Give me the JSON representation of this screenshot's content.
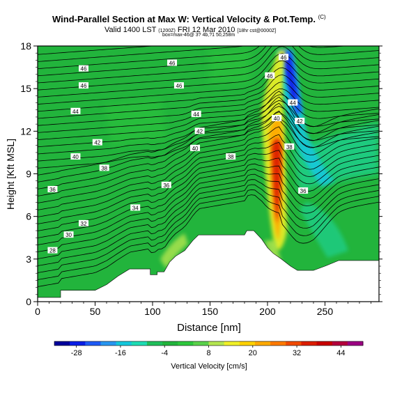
{
  "header": {
    "title_main": "Wind-Parallel Section at Max W: Vertical Velocity & Pot.Temp.",
    "title_unit": "(C)",
    "valid_prefix": "Valid 1400 LST",
    "valid_paren": "(1200Z)",
    "valid_date": "FRI 12 Mar 2010",
    "valid_suffix": "[18hr cst@0000Z]",
    "info_line": "box=max-46@ 3? 4b,?1 50,258m"
  },
  "colorbar": {
    "label": "Vertical Velocity [cm/s]",
    "tick_labels": [
      "-28",
      "-16",
      "-4",
      "8",
      "20",
      "32",
      "44"
    ],
    "colors": [
      "#00009b",
      "#0a1ee6",
      "#1e5af5",
      "#2896f0",
      "#14c8dc",
      "#1eddb4",
      "#20bf5a",
      "#22b43c",
      "#2dc83c",
      "#5ad24b",
      "#b4e650",
      "#f0f028",
      "#ffd200",
      "#ffaa00",
      "#ff7a00",
      "#f04a00",
      "#dc1e00",
      "#c80000",
      "#b4003c",
      "#9b0082"
    ]
  },
  "chart_data": {
    "type": "heatmap",
    "title": "Wind-Parallel Section at Max W: Vertical Velocity & Pot.Temp.",
    "xlabel": "Distance [nm]",
    "ylabel": "Height [Kft MSL]",
    "xlim": [
      0,
      297
    ],
    "ylim": [
      0,
      18
    ],
    "x_ticks": [
      0,
      50,
      100,
      150,
      200,
      250
    ],
    "y_ticks": [
      0,
      3,
      6,
      9,
      12,
      15,
      18
    ],
    "grid": false,
    "colorbar_label": "Vertical Velocity [cm/s]",
    "colorbar_range": [
      -34,
      50
    ],
    "vertical_velocity_features": [
      {
        "kind": "updraft_core",
        "x": 208,
        "y_range": [
          3.5,
          12.5
        ],
        "max_cm_s": 46
      },
      {
        "kind": "updraft_plume",
        "x": 196,
        "y_range": [
          12,
          17.5
        ],
        "max_cm_s": 20
      },
      {
        "kind": "downdraft_core",
        "x": 218,
        "y_range": [
          12.5,
          17.8
        ],
        "min_cm_s": -28
      },
      {
        "kind": "downdraft_band",
        "x": 222,
        "y_range": [
          7.5,
          12.5
        ],
        "min_cm_s": -10
      },
      {
        "kind": "upslope_lift",
        "x": 115,
        "y_range": [
          2.2,
          4.5
        ],
        "max_cm_s": 14
      }
    ],
    "terrain_kft": [
      {
        "x": 0,
        "y": 0.3
      },
      {
        "x": 20,
        "y": 0.3
      },
      {
        "x": 20,
        "y": 0.8
      },
      {
        "x": 50,
        "y": 0.8
      },
      {
        "x": 60,
        "y": 1.2
      },
      {
        "x": 70,
        "y": 1.8
      },
      {
        "x": 80,
        "y": 2.3
      },
      {
        "x": 98,
        "y": 2.3
      },
      {
        "x": 98,
        "y": 1.9
      },
      {
        "x": 104,
        "y": 1.9
      },
      {
        "x": 104,
        "y": 2.1
      },
      {
        "x": 110,
        "y": 2.1
      },
      {
        "x": 115,
        "y": 2.8
      },
      {
        "x": 120,
        "y": 3.2
      },
      {
        "x": 128,
        "y": 3.6
      },
      {
        "x": 135,
        "y": 4.3
      },
      {
        "x": 140,
        "y": 4.7
      },
      {
        "x": 180,
        "y": 4.7
      },
      {
        "x": 182,
        "y": 5.0
      },
      {
        "x": 188,
        "y": 5.0
      },
      {
        "x": 195,
        "y": 4.4
      },
      {
        "x": 200,
        "y": 3.8
      },
      {
        "x": 205,
        "y": 3.4
      },
      {
        "x": 212,
        "y": 3.0
      },
      {
        "x": 220,
        "y": 2.5
      },
      {
        "x": 226,
        "y": 2.2
      },
      {
        "x": 240,
        "y": 2.2
      },
      {
        "x": 250,
        "y": 2.5
      },
      {
        "x": 262,
        "y": 2.9
      },
      {
        "x": 297,
        "y": 2.9
      }
    ],
    "isentrope_labels_C": [
      {
        "text": "46",
        "x": 40,
        "y": 16.4
      },
      {
        "text": "46",
        "x": 117,
        "y": 16.8
      },
      {
        "text": "46",
        "x": 40,
        "y": 15.2
      },
      {
        "text": "46",
        "x": 123,
        "y": 15.2
      },
      {
        "text": "46",
        "x": 214,
        "y": 17.2
      },
      {
        "text": "46",
        "x": 202,
        "y": 15.9
      },
      {
        "text": "44",
        "x": 33,
        "y": 13.4
      },
      {
        "text": "44",
        "x": 138,
        "y": 13.2
      },
      {
        "text": "44",
        "x": 222,
        "y": 14.0
      },
      {
        "text": "42",
        "x": 141,
        "y": 12.0
      },
      {
        "text": "42",
        "x": 52,
        "y": 11.2
      },
      {
        "text": "42",
        "x": 228,
        "y": 12.7
      },
      {
        "text": "40",
        "x": 33,
        "y": 10.2
      },
      {
        "text": "40",
        "x": 137,
        "y": 10.8
      },
      {
        "text": "40",
        "x": 208,
        "y": 12.9
      },
      {
        "text": "38",
        "x": 58,
        "y": 9.4
      },
      {
        "text": "38",
        "x": 168,
        "y": 10.2
      },
      {
        "text": "38",
        "x": 219,
        "y": 10.9
      },
      {
        "text": "36",
        "x": 13,
        "y": 7.9
      },
      {
        "text": "36",
        "x": 112,
        "y": 8.2
      },
      {
        "text": "36",
        "x": 231,
        "y": 7.8
      },
      {
        "text": "34",
        "x": 85,
        "y": 6.6
      },
      {
        "text": "32",
        "x": 40,
        "y": 5.5
      },
      {
        "text": "30",
        "x": 27,
        "y": 4.7
      },
      {
        "text": "28",
        "x": 13,
        "y": 3.6
      }
    ]
  }
}
